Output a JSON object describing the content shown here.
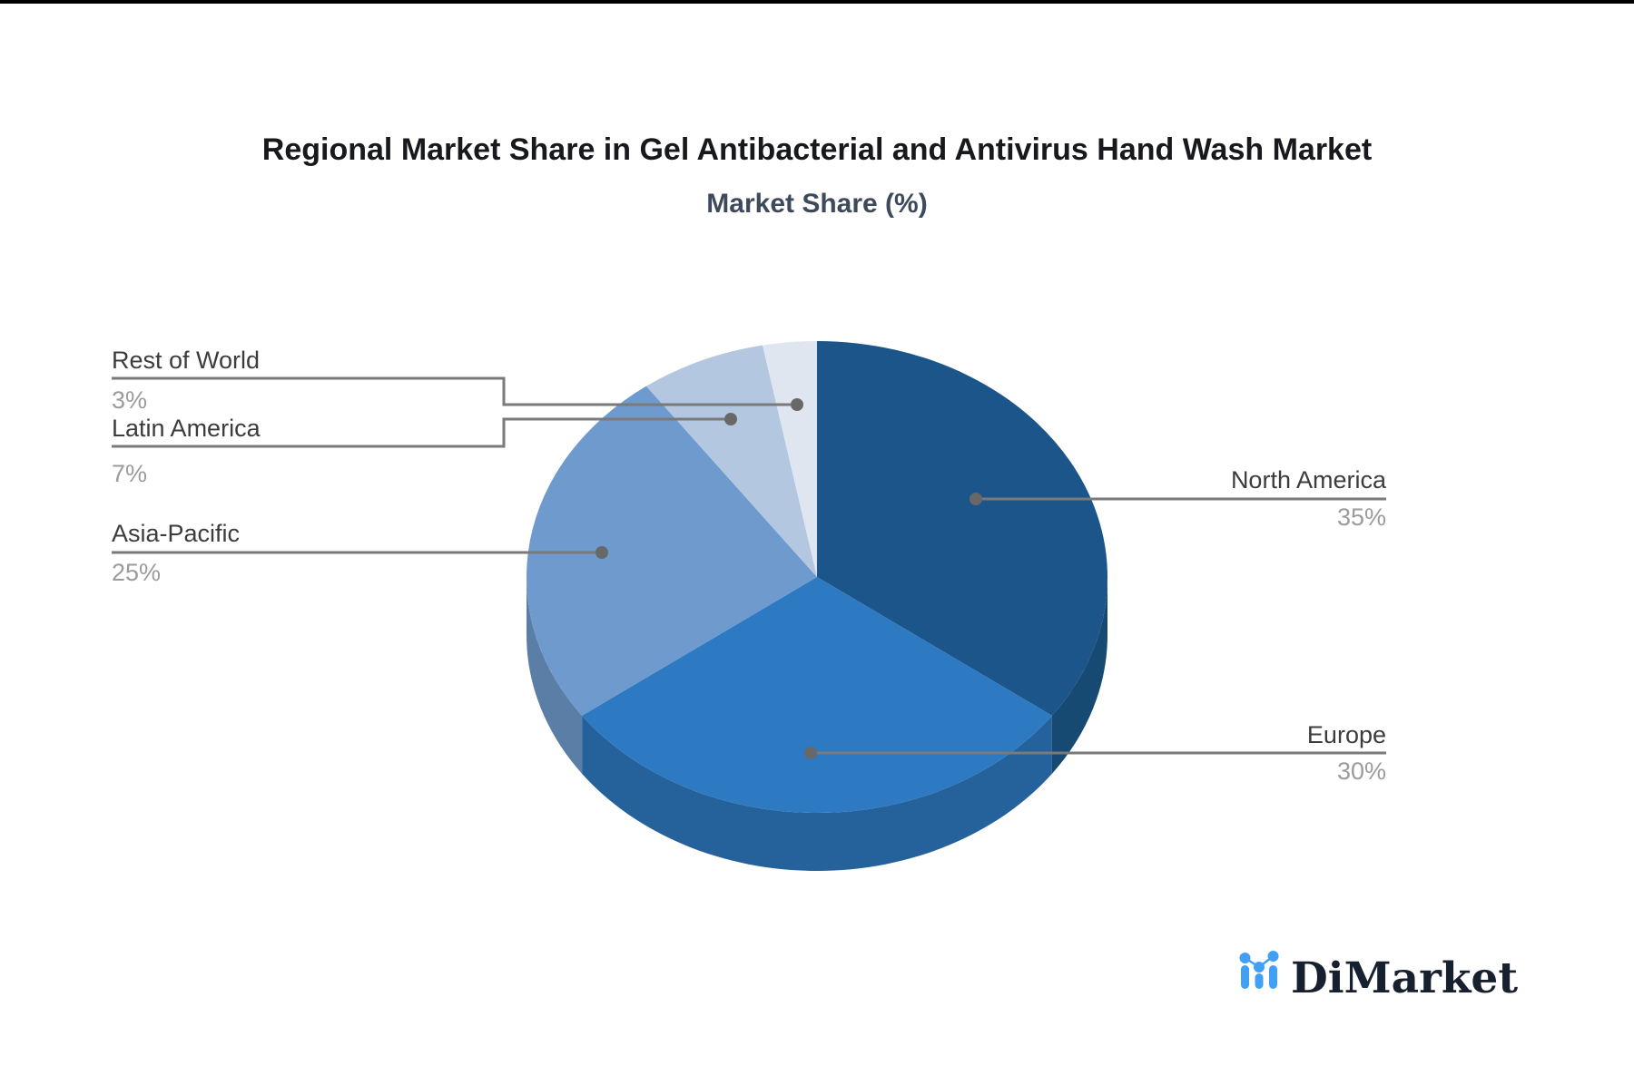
{
  "header": {
    "title": "Regional Market Share in Gel Antibacterial and Antivirus Hand Wash Market",
    "subtitle": "Market Share (%)"
  },
  "chart_data": {
    "type": "pie",
    "title": "Regional Market Share in Gel Antibacterial and Antivirus Hand Wash Market",
    "subtitle": "Market Share (%)",
    "unit": "%",
    "direction": "clockwise",
    "start_angle_deg": 0,
    "style": "3d-pie",
    "legend_position": "none",
    "slices": [
      {
        "label": "North America",
        "value": 35,
        "display": "35%",
        "color": "#1b558a",
        "side_color": "#164a72"
      },
      {
        "label": "Europe",
        "value": 30,
        "display": "30%",
        "color": "#2e7ac2",
        "side_color": "#25629b"
      },
      {
        "label": "Asia-Pacific",
        "value": 25,
        "display": "25%",
        "color": "#6f9acd",
        "side_color": "#5a7ea6"
      },
      {
        "label": "Latin America",
        "value": 7,
        "display": "7%",
        "color": "#b3c8e0",
        "side_color": "#8fa7c0"
      },
      {
        "label": "Rest of World",
        "value": 3,
        "display": "3%",
        "color": "#dfe6f0",
        "side_color": "#b5c1cf"
      }
    ],
    "label_style": {
      "name_color": "#3c3c3c",
      "value_color": "#9b9b9b",
      "leader_line_color": "#7a7a7a"
    }
  },
  "branding": {
    "logo_text": "DiMarket",
    "logo_icon": "bar-chart-line-icon",
    "logo_icon_color": "#41a0f6",
    "logo_text_color": "#16202e"
  }
}
